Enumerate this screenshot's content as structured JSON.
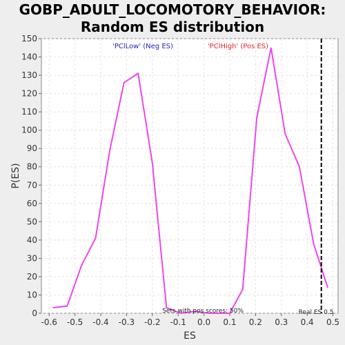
{
  "chart_data": {
    "type": "line",
    "title": [
      "GOBP_ADULT_LOCOMOTORY_BEHAVIOR:",
      "Random ES distribution"
    ],
    "xlabel": "ES",
    "ylabel": "P(ES)",
    "xlim": [
      -0.63,
      0.52
    ],
    "ylim": [
      0,
      150
    ],
    "xticks": [
      -0.6,
      -0.5,
      -0.4,
      -0.3,
      -0.2,
      -0.1,
      0.0,
      0.1,
      0.2,
      0.3,
      0.4,
      0.5
    ],
    "xtick_labels": [
      "-0.6",
      "-0.5",
      "-0.4",
      "-0.3",
      "-0.2",
      "-0.1",
      "0.0",
      "0.1",
      "0.2",
      "0.3",
      "0.4",
      "0.5"
    ],
    "yticks": [
      0,
      10,
      20,
      30,
      40,
      50,
      60,
      70,
      80,
      90,
      100,
      110,
      120,
      130,
      140,
      150
    ],
    "grid": true,
    "series": [
      {
        "color": "#ee44ee",
        "x": [
          -0.585,
          -0.53,
          -0.475,
          -0.42,
          -0.365,
          -0.31,
          -0.255,
          -0.2,
          -0.145,
          -0.09,
          -0.035,
          0.02,
          0.075,
          0.1,
          0.15,
          0.205,
          0.26,
          0.315,
          0.37,
          0.425,
          0.48
        ],
        "values": [
          3,
          4,
          26,
          41,
          89,
          126,
          131,
          82,
          3,
          0,
          1,
          0,
          0,
          0,
          13,
          107,
          145,
          98,
          80,
          38,
          14
        ]
      }
    ],
    "real_es": {
      "x": 0.455,
      "label": "Real ES 0.5",
      "color": "#000000"
    },
    "annotations": {
      "low_label": "'PClLow' (Neg ES)",
      "low_color": "#2222cc",
      "high_label": "'PClHigh' (Pos ES)",
      "high_color": "#ee2222",
      "pos_scores": "Sets with pos scores: 50%"
    }
  }
}
